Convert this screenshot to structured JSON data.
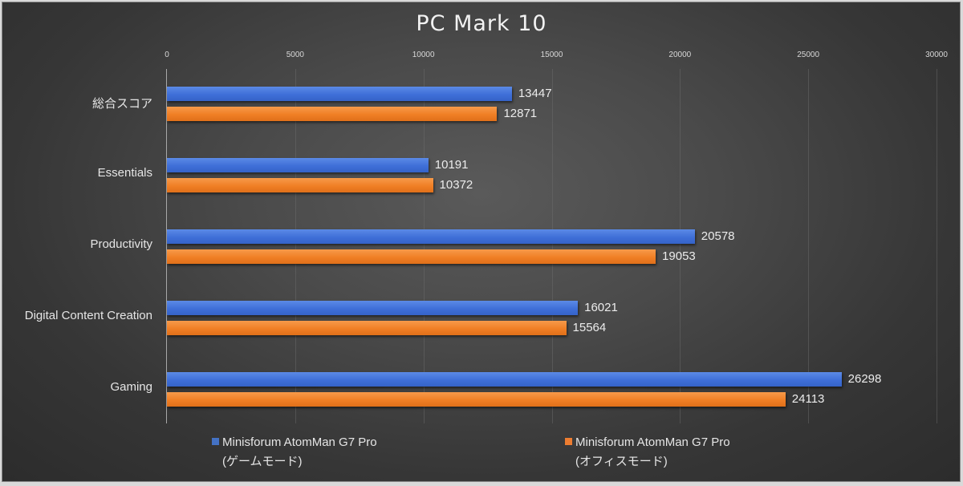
{
  "chart_data": {
    "type": "bar",
    "orientation": "horizontal",
    "title": "PC Mark 10",
    "xlabel": "",
    "ylabel": "",
    "xlim": [
      0,
      30000
    ],
    "x_ticks": [
      "0",
      "5000",
      "10000",
      "15000",
      "20000",
      "25000",
      "30000"
    ],
    "x_axis_position": "top",
    "grid": true,
    "legend_position": "bottom",
    "categories": [
      "総合スコア",
      "Essentials",
      "Productivity",
      "Digital Content Creation",
      "Gaming"
    ],
    "series": [
      {
        "name": "Minisforum AtomMan G7 Pro (ゲームモード)",
        "legend_line1": "Minisforum AtomMan G7 Pro",
        "legend_line2": "(ゲームモード)",
        "color": "#4472c4",
        "values": [
          13447,
          10191,
          20578,
          16021,
          26298
        ],
        "labels": [
          "13447",
          "10191",
          "20578",
          "16021",
          "26298"
        ]
      },
      {
        "name": "Minisforum AtomMan G7 Pro (オフィスモード)",
        "legend_line1": "Minisforum AtomMan G7 Pro",
        "legend_line2": "(オフィスモード)",
        "color": "#ed7d31",
        "values": [
          12871,
          10372,
          19053,
          15564,
          24113
        ],
        "labels": [
          "12871",
          "10372",
          "19053",
          "15564",
          "24113"
        ]
      }
    ]
  }
}
